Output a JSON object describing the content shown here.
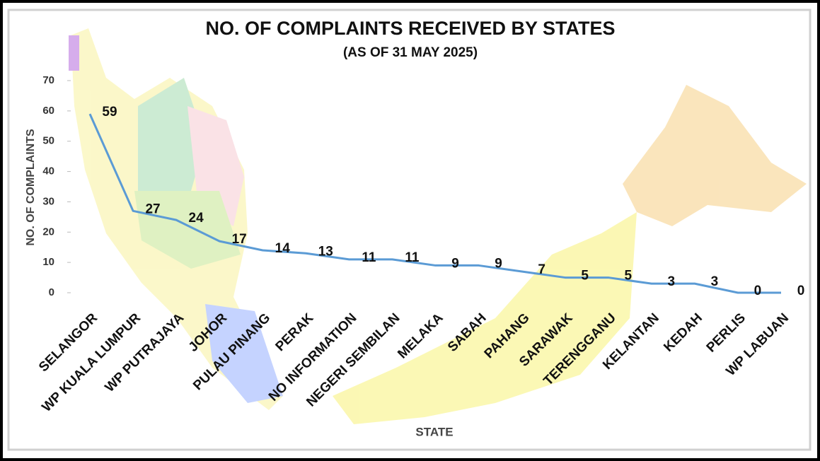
{
  "chart_data": {
    "type": "line",
    "title": "NO. OF COMPLAINTS RECEIVED BY STATES",
    "subtitle": "(AS OF 31 MAY 2025)",
    "y_label": "NO. OF COMPLAINTS",
    "x_label": "STATE",
    "categories": [
      "SELANGOR",
      "WP KUALA LUMPUR",
      "WP PUTRAJAYA",
      "JOHOR",
      "PULAU PINANG",
      "PERAK",
      "NO INFORMATION",
      "NEGERI SEMBILAN",
      "MELAKA",
      "SABAH",
      "PAHANG",
      "SARAWAK",
      "TERENGGANU",
      "KELANTAN",
      "KEDAH",
      "PERLIS",
      "WP LABUAN"
    ],
    "values": [
      59,
      27,
      24,
      17,
      14,
      13,
      11,
      11,
      9,
      9,
      7,
      5,
      5,
      3,
      3,
      0,
      0
    ],
    "color": "#5b9bd5",
    "ylim": [
      0,
      70
    ],
    "yticks": [
      0,
      10,
      20,
      30,
      40,
      50,
      60,
      70
    ]
  }
}
